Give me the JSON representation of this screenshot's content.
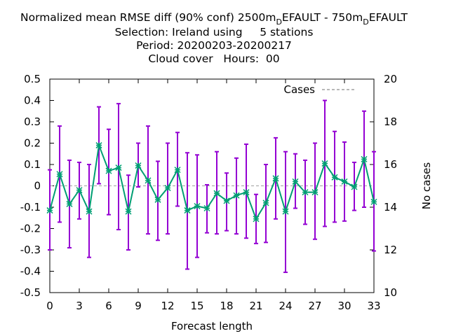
{
  "title": {
    "line1_a": "Normalized mean RMSE diff (90% conf) 2500m",
    "line1_sub1": "D",
    "line1_b": "EFAULT - 750m",
    "line1_sub2": "D",
    "line1_c": "EFAULT",
    "line2": "Selection: Ireland using     5 stations",
    "line3": "Period: 20200203-20200217",
    "line4": "Cloud cover   Hours:  00"
  },
  "colors": {
    "errorbar": "#9400d3",
    "line": "#009e73",
    "cases": "#a0a0a0",
    "zero_line": "#a0a0a0"
  },
  "chart_data": {
    "type": "line",
    "xlabel": "Forecast length",
    "ylabel": "",
    "y2label": "No cases",
    "xlim": [
      0,
      33
    ],
    "ylim": [
      -0.5,
      0.5
    ],
    "y2lim": [
      10,
      20
    ],
    "xticks": [
      "0",
      "3",
      "6",
      "9",
      "12",
      "15",
      "18",
      "21",
      "24",
      "27",
      "30",
      "33"
    ],
    "yticks": [
      "-0.5",
      "-0.4",
      "-0.3",
      "-0.2",
      "-0.1",
      "0",
      "0.1",
      "0.2",
      "0.3",
      "0.4",
      "0.5"
    ],
    "y2ticks": [
      "10",
      "12",
      "14",
      "16",
      "18",
      "20"
    ],
    "legend": {
      "label": "Cases",
      "position": "top-right"
    },
    "x": [
      0,
      1,
      2,
      3,
      4,
      5,
      6,
      7,
      8,
      9,
      10,
      11,
      12,
      13,
      14,
      15,
      16,
      17,
      18,
      19,
      20,
      21,
      22,
      23,
      24,
      25,
      26,
      27,
      28,
      29,
      30,
      31,
      32,
      33
    ],
    "mean": [
      -0.115,
      0.055,
      -0.085,
      -0.02,
      -0.12,
      0.19,
      0.07,
      0.085,
      -0.12,
      0.095,
      0.025,
      -0.065,
      -0.01,
      0.075,
      -0.115,
      -0.095,
      -0.105,
      -0.035,
      -0.07,
      -0.045,
      -0.03,
      -0.155,
      -0.08,
      0.035,
      -0.12,
      0.02,
      -0.03,
      -0.03,
      0.105,
      0.04,
      0.02,
      -0.005,
      0.125,
      -0.075
    ],
    "upper": [
      0.075,
      0.28,
      0.12,
      0.11,
      0.1,
      0.37,
      0.265,
      0.385,
      0.05,
      0.2,
      0.28,
      0.115,
      0.2,
      0.25,
      0.155,
      0.145,
      0.005,
      0.16,
      0.06,
      0.13,
      0.195,
      -0.04,
      0.1,
      0.225,
      0.16,
      0.15,
      0.12,
      0.2,
      0.4,
      0.255,
      0.205,
      0.11,
      0.35,
      0.16
    ],
    "lower": [
      -0.3,
      -0.17,
      -0.29,
      -0.155,
      -0.335,
      0.01,
      -0.135,
      -0.205,
      -0.3,
      -0.005,
      -0.225,
      -0.255,
      -0.225,
      -0.095,
      -0.39,
      -0.335,
      -0.22,
      -0.225,
      -0.21,
      -0.225,
      -0.245,
      -0.27,
      -0.265,
      -0.155,
      -0.405,
      -0.105,
      -0.18,
      -0.25,
      -0.19,
      -0.17,
      -0.165,
      -0.115,
      -0.1,
      -0.305
    ],
    "cases": [
      15,
      15,
      15,
      15,
      15,
      15,
      15,
      15,
      15,
      15,
      15,
      15,
      15,
      15,
      15,
      15,
      15,
      15,
      15,
      15,
      15,
      15,
      15,
      15,
      15,
      15,
      15,
      15,
      15,
      15,
      15,
      15,
      15,
      15
    ]
  }
}
